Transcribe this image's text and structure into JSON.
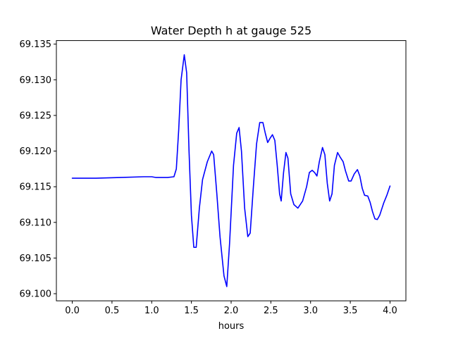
{
  "chart_data": {
    "type": "line",
    "title": "Water Depth h at gauge 525",
    "xlabel": "hours",
    "ylabel": "",
    "xlim": [
      -0.2,
      4.2
    ],
    "ylim": [
      69.099,
      69.1355
    ],
    "xticks": [
      0.0,
      0.5,
      1.0,
      1.5,
      2.0,
      2.5,
      3.0,
      3.5,
      4.0
    ],
    "xtick_labels": [
      "0.0",
      "0.5",
      "1.0",
      "1.5",
      "2.0",
      "2.5",
      "3.0",
      "3.5",
      "4.0"
    ],
    "yticks": [
      69.1,
      69.105,
      69.11,
      69.115,
      69.12,
      69.125,
      69.13,
      69.135
    ],
    "ytick_labels": [
      "69.100",
      "69.105",
      "69.110",
      "69.115",
      "69.120",
      "69.125",
      "69.130",
      "69.135"
    ],
    "grid": false,
    "series": [
      {
        "color": "#0000ff",
        "points": [
          [
            0.0,
            69.1162
          ],
          [
            0.3,
            69.1162
          ],
          [
            0.6,
            69.1163
          ],
          [
            0.9,
            69.1164
          ],
          [
            1.0,
            69.1164
          ],
          [
            1.05,
            69.1163
          ],
          [
            1.2,
            69.1163
          ],
          [
            1.28,
            69.1164
          ],
          [
            1.31,
            69.1175
          ],
          [
            1.34,
            69.123
          ],
          [
            1.37,
            69.13
          ],
          [
            1.41,
            69.1335
          ],
          [
            1.44,
            69.131
          ],
          [
            1.47,
            69.12
          ],
          [
            1.5,
            69.111
          ],
          [
            1.53,
            69.1065
          ],
          [
            1.56,
            69.1065
          ],
          [
            1.6,
            69.112
          ],
          [
            1.64,
            69.116
          ],
          [
            1.7,
            69.1185
          ],
          [
            1.755,
            69.12
          ],
          [
            1.78,
            69.1195
          ],
          [
            1.82,
            69.114
          ],
          [
            1.86,
            69.108
          ],
          [
            1.91,
            69.1025
          ],
          [
            1.945,
            69.101
          ],
          [
            1.98,
            69.107
          ],
          [
            2.03,
            69.118
          ],
          [
            2.07,
            69.1225
          ],
          [
            2.1,
            69.1233
          ],
          [
            2.13,
            69.12
          ],
          [
            2.17,
            69.112
          ],
          [
            2.21,
            69.108
          ],
          [
            2.24,
            69.1085
          ],
          [
            2.28,
            69.115
          ],
          [
            2.32,
            69.121
          ],
          [
            2.36,
            69.124
          ],
          [
            2.4,
            69.124
          ],
          [
            2.43,
            69.1225
          ],
          [
            2.46,
            69.1212
          ],
          [
            2.49,
            69.1218
          ],
          [
            2.52,
            69.1223
          ],
          [
            2.55,
            69.1215
          ],
          [
            2.58,
            69.118
          ],
          [
            2.61,
            69.114
          ],
          [
            2.63,
            69.113
          ],
          [
            2.66,
            69.117
          ],
          [
            2.69,
            69.1198
          ],
          [
            2.715,
            69.119
          ],
          [
            2.75,
            69.114
          ],
          [
            2.79,
            69.1125
          ],
          [
            2.84,
            69.112
          ],
          [
            2.9,
            69.113
          ],
          [
            2.95,
            69.115
          ],
          [
            2.985,
            69.117
          ],
          [
            3.02,
            69.1173
          ],
          [
            3.05,
            69.117
          ],
          [
            3.08,
            69.1165
          ],
          [
            3.11,
            69.1185
          ],
          [
            3.15,
            69.1205
          ],
          [
            3.18,
            69.1195
          ],
          [
            3.21,
            69.1155
          ],
          [
            3.24,
            69.113
          ],
          [
            3.27,
            69.114
          ],
          [
            3.3,
            69.118
          ],
          [
            3.34,
            69.1198
          ],
          [
            3.37,
            69.1192
          ],
          [
            3.41,
            69.1185
          ],
          [
            3.44,
            69.1172
          ],
          [
            3.48,
            69.1158
          ],
          [
            3.51,
            69.1158
          ],
          [
            3.55,
            69.1168
          ],
          [
            3.59,
            69.1174
          ],
          [
            3.62,
            69.1165
          ],
          [
            3.65,
            69.1148
          ],
          [
            3.68,
            69.1138
          ],
          [
            3.72,
            69.1137
          ],
          [
            3.75,
            69.1128
          ],
          [
            3.78,
            69.1115
          ],
          [
            3.81,
            69.1105
          ],
          [
            3.84,
            69.1104
          ],
          [
            3.87,
            69.111
          ],
          [
            3.92,
            69.1127
          ],
          [
            3.96,
            69.1138
          ],
          [
            4.0,
            69.1151
          ]
        ]
      }
    ]
  }
}
